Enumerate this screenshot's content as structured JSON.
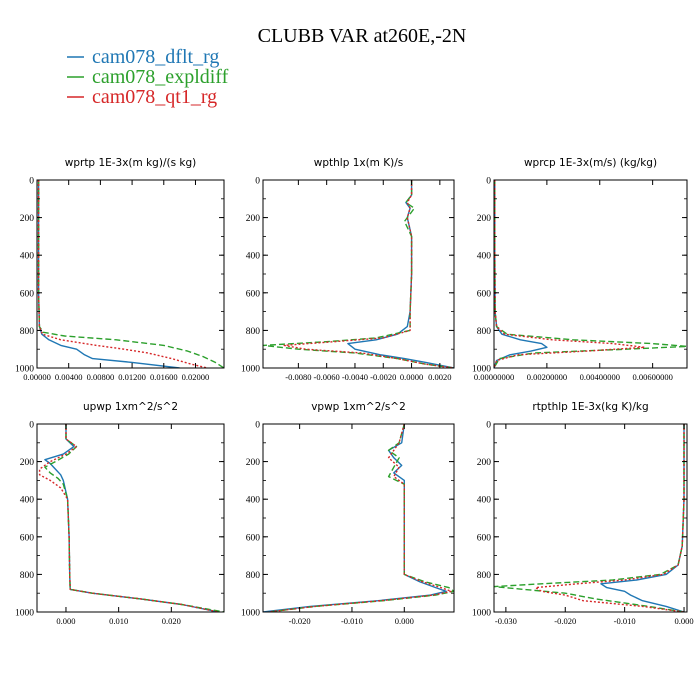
{
  "title": "CLUBB VAR at260E,-2N",
  "legend": [
    {
      "name": "cam078_dflt_rg",
      "color": "#1f77b4",
      "dash": "solid"
    },
    {
      "name": "cam078_expldiff",
      "color": "#2ca02c",
      "dash": "dash"
    },
    {
      "name": "cam078_qt1_rg",
      "color": "#d62728",
      "dash": "dot"
    }
  ],
  "chart_data": [
    {
      "type": "line",
      "title": "wprtp  1E-3x(m kg)/(s kg)",
      "xlim": [
        0,
        0.0236
      ],
      "ylim": [
        1000,
        0
      ],
      "xticks": [
        0,
        0.004,
        0.008,
        0.012,
        0.016,
        0.02
      ],
      "xticklabels": [
        "0.00000",
        "0.00400",
        "0.00800",
        "0.01200",
        "0.01600",
        "0.02000"
      ],
      "yticks": [
        0,
        200,
        400,
        600,
        800,
        1000
      ],
      "yticklabels": [
        "0",
        "200",
        "400",
        "600",
        "800",
        "1000"
      ],
      "series": [
        {
          "name": "cam078_dflt_rg",
          "y": [
            0,
            150,
            400,
            600,
            780,
            820,
            850,
            880,
            900,
            930,
            950,
            970,
            1000
          ],
          "x": [
            0.0002,
            0.0002,
            0.0002,
            0.0002,
            0.0003,
            0.0006,
            0.0015,
            0.003,
            0.005,
            0.006,
            0.007,
            0.012,
            0.018
          ]
        },
        {
          "name": "cam078_expldiff",
          "y": [
            0,
            150,
            400,
            600,
            780,
            810,
            830,
            850,
            880,
            910,
            940,
            970,
            1000
          ],
          "x": [
            0.0002,
            0.0002,
            0.0002,
            0.0002,
            0.0003,
            0.0008,
            0.0035,
            0.01,
            0.016,
            0.019,
            0.021,
            0.0225,
            0.0236
          ]
        },
        {
          "name": "cam078_qt1_rg",
          "y": [
            0,
            150,
            400,
            600,
            780,
            820,
            850,
            880,
            900,
            920,
            950,
            980,
            1000
          ],
          "x": [
            0.0002,
            0.0002,
            0.0002,
            0.0002,
            0.0003,
            0.0007,
            0.003,
            0.0075,
            0.011,
            0.014,
            0.017,
            0.0195,
            0.0215
          ]
        }
      ]
    },
    {
      "type": "line",
      "title": "wpthlp  1x(m K)/s",
      "xlim": [
        -0.0105,
        0.003
      ],
      "ylim": [
        1000,
        0
      ],
      "xticks": [
        -0.008,
        -0.006,
        -0.004,
        -0.002,
        0,
        0.002
      ],
      "xticklabels": [
        "-0.0080",
        "-0.0060",
        "-0.0040",
        "-0.0020",
        "0.0000",
        "0.0020"
      ],
      "yticks": [
        0,
        200,
        400,
        600,
        800,
        1000
      ],
      "yticklabels": [
        "0",
        "200",
        "400",
        "600",
        "800",
        "1000"
      ],
      "series": [
        {
          "name": "cam078_dflt_rg",
          "y": [
            0,
            80,
            120,
            150,
            200,
            300,
            500,
            700,
            780,
            820,
            850,
            870,
            900,
            930,
            950,
            970,
            1000
          ],
          "x": [
            0.0,
            0.0,
            -0.0004,
            -0.0001,
            -0.0003,
            0.0,
            0.0,
            -0.0001,
            -0.0003,
            -0.001,
            -0.0025,
            -0.0045,
            -0.004,
            -0.0022,
            -0.0005,
            0.001,
            0.003
          ]
        },
        {
          "name": "cam078_expldiff",
          "y": [
            0,
            80,
            120,
            150,
            220,
            300,
            500,
            700,
            800,
            840,
            860,
            880,
            900,
            920,
            950,
            980,
            1000
          ],
          "x": [
            0.0,
            0.0,
            -0.0004,
            0.0002,
            -0.0005,
            0.0,
            0.0,
            -0.0001,
            -0.0001,
            -0.0025,
            -0.006,
            -0.0105,
            -0.008,
            -0.004,
            -0.001,
            0.001,
            0.003
          ]
        },
        {
          "name": "cam078_qt1_rg",
          "y": [
            0,
            80,
            120,
            150,
            200,
            300,
            500,
            700,
            800,
            840,
            860,
            880,
            900,
            920,
            950,
            980,
            1000
          ],
          "x": [
            0.0,
            0.0,
            -0.0003,
            -0.0001,
            -0.0003,
            0.0,
            0.0,
            -0.0001,
            -0.0001,
            -0.002,
            -0.0055,
            -0.009,
            -0.0075,
            -0.0035,
            -0.001,
            0.001,
            0.003
          ]
        }
      ]
    },
    {
      "type": "line",
      "title": "wprcp  1E-3x(m/s) (kg/kg)",
      "xlim": [
        0,
        0.0073
      ],
      "ylim": [
        1000,
        0
      ],
      "xticks": [
        0,
        0.002,
        0.004,
        0.006
      ],
      "xticklabels": [
        "0.00000000",
        "0.00200000",
        "0.00400000",
        "0.00600000"
      ],
      "yticks": [
        0,
        200,
        400,
        600,
        800,
        1000
      ],
      "yticklabels": [
        "0",
        "200",
        "400",
        "600",
        "800",
        "1000"
      ],
      "series": [
        {
          "name": "cam078_dflt_rg",
          "y": [
            0,
            400,
            700,
            780,
            820,
            850,
            870,
            890,
            910,
            930,
            960,
            1000
          ],
          "x": [
            3e-05,
            3e-05,
            4e-05,
            0.0001,
            0.0003,
            0.001,
            0.0018,
            0.002,
            0.0014,
            0.0006,
            0.0001,
            0.0
          ]
        },
        {
          "name": "cam078_expldiff",
          "y": [
            0,
            400,
            700,
            780,
            820,
            850,
            870,
            885,
            900,
            920,
            950,
            1000
          ],
          "x": [
            3e-05,
            3e-05,
            4e-05,
            0.0001,
            0.0005,
            0.003,
            0.006,
            0.0073,
            0.005,
            0.0015,
            0.0002,
            0.0
          ]
        },
        {
          "name": "cam078_qt1_rg",
          "y": [
            0,
            400,
            700,
            780,
            820,
            850,
            870,
            890,
            910,
            930,
            960,
            1000
          ],
          "x": [
            3e-05,
            3e-05,
            4e-05,
            0.0001,
            0.0004,
            0.0022,
            0.0045,
            0.0057,
            0.0035,
            0.0009,
            0.0001,
            0.0
          ]
        }
      ]
    },
    {
      "type": "line",
      "title": "upwp  1xm^2/s^2",
      "xlim": [
        -0.0055,
        0.03
      ],
      "ylim": [
        1000,
        0
      ],
      "xticks": [
        0,
        0.01,
        0.02
      ],
      "xticklabels": [
        "0.000",
        "0.010",
        "0.020"
      ],
      "yticks": [
        0,
        200,
        400,
        600,
        800,
        1000
      ],
      "yticklabels": [
        "0",
        "200",
        "400",
        "600",
        "800",
        "1000"
      ],
      "series": [
        {
          "name": "cam078_dflt_rg",
          "y": [
            0,
            80,
            120,
            160,
            190,
            210,
            240,
            270,
            300,
            400,
            600,
            800,
            880,
            900,
            930,
            960,
            1000
          ],
          "x": [
            0.0,
            0.0,
            0.0015,
            -0.0005,
            -0.004,
            -0.003,
            -0.002,
            -0.001,
            -0.0005,
            0.0003,
            0.0006,
            0.0007,
            0.0008,
            0.005,
            0.014,
            0.022,
            0.029
          ]
        },
        {
          "name": "cam078_expldiff",
          "y": [
            0,
            80,
            120,
            160,
            200,
            230,
            260,
            290,
            320,
            400,
            600,
            800,
            880,
            900,
            930,
            960,
            1000
          ],
          "x": [
            0.0,
            0.0,
            0.002,
            0.0005,
            -0.002,
            -0.004,
            -0.003,
            -0.0015,
            -0.0005,
            0.0003,
            0.0006,
            0.0007,
            0.0008,
            0.005,
            0.014,
            0.022,
            0.03
          ]
        },
        {
          "name": "cam078_qt1_rg",
          "y": [
            0,
            80,
            120,
            160,
            200,
            240,
            270,
            300,
            340,
            400,
            600,
            800,
            880,
            900,
            930,
            960,
            1000
          ],
          "x": [
            0.0,
            0.0,
            0.002,
            0.0,
            -0.003,
            -0.005,
            -0.005,
            -0.003,
            -0.001,
            0.0003,
            0.0006,
            0.0007,
            0.0008,
            0.005,
            0.014,
            0.022,
            0.029
          ]
        }
      ]
    },
    {
      "type": "line",
      "title": "vpwp  1xm^2/s^2",
      "xlim": [
        -0.027,
        0.0095
      ],
      "ylim": [
        1000,
        0
      ],
      "xticks": [
        -0.02,
        -0.01,
        0
      ],
      "xticklabels": [
        "-0.020",
        "-0.010",
        "0.000"
      ],
      "yticks": [
        0,
        200,
        400,
        600,
        800,
        1000
      ],
      "yticklabels": [
        "0",
        "200",
        "400",
        "600",
        "800",
        "1000"
      ],
      "series": [
        {
          "name": "cam078_dflt_rg",
          "y": [
            0,
            100,
            140,
            180,
            220,
            260,
            300,
            400,
            600,
            800,
            840,
            870,
            890,
            910,
            940,
            970,
            1000
          ],
          "x": [
            0.0,
            -0.0005,
            -0.003,
            -0.002,
            -0.0005,
            -0.002,
            0.0,
            0.0,
            0.0,
            0.0,
            0.003,
            0.006,
            0.008,
            0.005,
            -0.005,
            -0.018,
            -0.027
          ]
        },
        {
          "name": "cam078_expldiff",
          "y": [
            0,
            100,
            140,
            180,
            230,
            280,
            320,
            400,
            600,
            800,
            840,
            870,
            890,
            910,
            940,
            970,
            1000
          ],
          "x": [
            0.0,
            -0.001,
            -0.003,
            -0.001,
            -0.002,
            -0.003,
            0.0,
            0.0,
            0.0,
            0.0,
            0.004,
            0.0085,
            0.0095,
            0.006,
            -0.004,
            -0.017,
            -0.026
          ]
        },
        {
          "name": "cam078_qt1_rg",
          "y": [
            0,
            100,
            140,
            180,
            230,
            280,
            320,
            400,
            600,
            800,
            840,
            870,
            890,
            910,
            940,
            970,
            1000
          ],
          "x": [
            0.0,
            -0.001,
            -0.002,
            -0.003,
            -0.001,
            -0.002,
            0.0,
            0.0,
            0.0,
            0.0,
            0.0035,
            0.007,
            0.009,
            0.0055,
            -0.0045,
            -0.017,
            -0.026
          ]
        }
      ]
    },
    {
      "type": "line",
      "title": "rtpthlp  1E-3x(kg K)/kg",
      "xlim": [
        -0.032,
        0.0005
      ],
      "ylim": [
        1000,
        0
      ],
      "xticks": [
        -0.03,
        -0.02,
        -0.01,
        0
      ],
      "xticklabels": [
        "-0.030",
        "-0.020",
        "-0.010",
        "0.000"
      ],
      "yticks": [
        0,
        200,
        400,
        600,
        800,
        1000
      ],
      "yticklabels": [
        "0",
        "200",
        "400",
        "600",
        "800",
        "1000"
      ],
      "series": [
        {
          "name": "cam078_dflt_rg",
          "y": [
            0,
            400,
            650,
            750,
            800,
            830,
            850,
            870,
            890,
            910,
            940,
            970,
            1000
          ],
          "x": [
            0.0,
            0.0,
            -0.0003,
            -0.001,
            -0.003,
            -0.008,
            -0.014,
            -0.013,
            -0.01,
            -0.009,
            -0.007,
            -0.003,
            0.0
          ]
        },
        {
          "name": "cam078_expldiff",
          "y": [
            0,
            400,
            650,
            750,
            800,
            830,
            850,
            865,
            880,
            900,
            930,
            970,
            1000
          ],
          "x": [
            0.0,
            0.0,
            -0.0003,
            -0.001,
            -0.004,
            -0.012,
            -0.024,
            -0.032,
            -0.027,
            -0.02,
            -0.015,
            -0.006,
            0.0
          ]
        },
        {
          "name": "cam078_qt1_rg",
          "y": [
            0,
            400,
            650,
            750,
            800,
            830,
            850,
            870,
            890,
            910,
            940,
            970,
            1000
          ],
          "x": [
            0.0,
            0.0,
            -0.0003,
            -0.001,
            -0.0035,
            -0.01,
            -0.018,
            -0.025,
            -0.024,
            -0.02,
            -0.017,
            -0.007,
            0.0
          ]
        }
      ]
    }
  ]
}
